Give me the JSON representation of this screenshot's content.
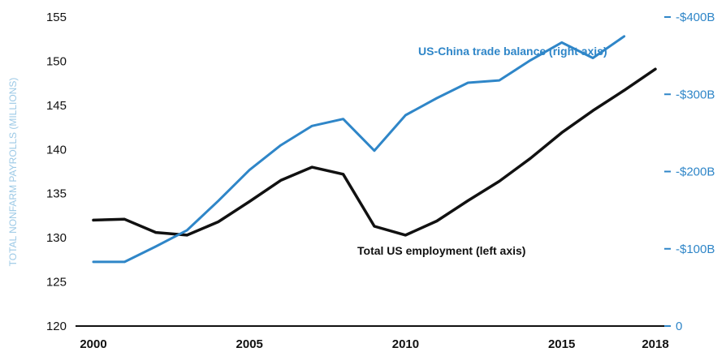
{
  "chart_data": {
    "type": "line",
    "xlabel": "",
    "ylabel_left": "TOTAL NONFARM PAYROLLS (MILLIONS)",
    "ylabel_right": "",
    "x": [
      2000,
      2001,
      2002,
      2003,
      2004,
      2005,
      2006,
      2007,
      2008,
      2009,
      2010,
      2011,
      2012,
      2013,
      2014,
      2015,
      2016,
      2017,
      2018
    ],
    "x_tick_labels": [
      "2000",
      "2005",
      "2010",
      "2015",
      "2018"
    ],
    "y_left_ticks": [
      "120",
      "125",
      "130",
      "135",
      "140",
      "145",
      "150",
      "155"
    ],
    "y_left_range": [
      120,
      155
    ],
    "y_right_ticks": [
      "0",
      "-$100B",
      "-$200B",
      "-$300B",
      "-$400B"
    ],
    "y_right_range": [
      0,
      400
    ],
    "grid": false,
    "series": [
      {
        "name": "Total US employment (left axis)",
        "axis": "left",
        "color": "#111111",
        "x": [
          2000,
          2001,
          2002,
          2003,
          2004,
          2005,
          2006,
          2007,
          2008,
          2009,
          2010,
          2011,
          2012,
          2013,
          2014,
          2015,
          2016,
          2017,
          2018
        ],
        "values": [
          132.0,
          132.1,
          130.6,
          130.3,
          131.8,
          134.1,
          136.5,
          138.0,
          137.2,
          131.3,
          130.3,
          131.9,
          134.2,
          136.4,
          139.0,
          141.9,
          144.4,
          146.7,
          149.1
        ]
      },
      {
        "name": "US-China trade balance (right axis)",
        "axis": "right",
        "color": "#2f86c8",
        "x": [
          2000,
          2001,
          2002,
          2003,
          2004,
          2005,
          2006,
          2007,
          2008,
          2009,
          2010,
          2011,
          2012,
          2013,
          2014,
          2015,
          2016,
          2017
        ],
        "values": [
          83,
          83,
          103,
          124,
          162,
          202,
          234,
          259,
          268,
          227,
          273,
          295,
          315,
          318,
          344,
          367,
          347,
          375
        ]
      }
    ]
  }
}
